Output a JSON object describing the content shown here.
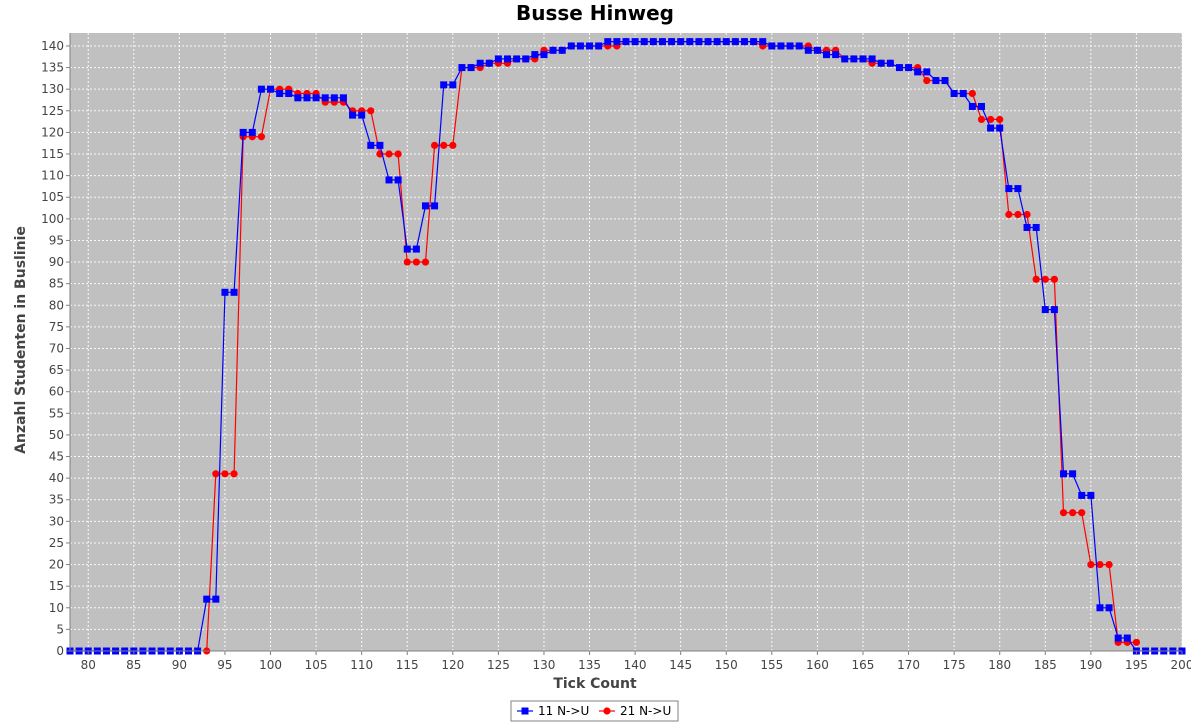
{
  "colors": {
    "plot_background": "#c0c0c0",
    "gridline": "#ffffff",
    "series_11": "#0000ff",
    "series_21": "#ff0000"
  },
  "chart_data": {
    "type": "line",
    "title": "Busse Hinweg",
    "xlabel": "Tick Count",
    "ylabel": "Anzahl Studenten in Buslinie",
    "xlim": [
      78,
      200
    ],
    "ylim": [
      0,
      143
    ],
    "x_ticks": [
      "80",
      "85",
      "90",
      "95",
      "100",
      "105",
      "110",
      "115",
      "120",
      "125",
      "130",
      "135",
      "140",
      "145",
      "150",
      "155",
      "160",
      "165",
      "170",
      "175",
      "180",
      "185",
      "190",
      "195",
      "200"
    ],
    "y_ticks": [
      "0",
      "5",
      "10",
      "15",
      "20",
      "25",
      "30",
      "35",
      "40",
      "45",
      "50",
      "55",
      "60",
      "65",
      "70",
      "75",
      "80",
      "85",
      "90",
      "95",
      "100",
      "105",
      "110",
      "115",
      "120",
      "125",
      "130",
      "135",
      "140"
    ],
    "grid": true,
    "legend_position": "bottom",
    "x": [
      78,
      79,
      80,
      81,
      82,
      83,
      84,
      85,
      86,
      87,
      88,
      89,
      90,
      91,
      92,
      93,
      94,
      95,
      96,
      97,
      98,
      99,
      100,
      101,
      102,
      103,
      104,
      105,
      106,
      107,
      108,
      109,
      110,
      111,
      112,
      113,
      114,
      115,
      116,
      117,
      118,
      119,
      120,
      121,
      122,
      123,
      124,
      125,
      126,
      127,
      128,
      129,
      130,
      131,
      132,
      133,
      134,
      135,
      136,
      137,
      138,
      139,
      140,
      141,
      142,
      143,
      144,
      145,
      146,
      147,
      148,
      149,
      150,
      151,
      152,
      153,
      154,
      155,
      156,
      157,
      158,
      159,
      160,
      161,
      162,
      163,
      164,
      165,
      166,
      167,
      168,
      169,
      170,
      171,
      172,
      173,
      174,
      175,
      176,
      177,
      178,
      179,
      180,
      181,
      182,
      183,
      184,
      185,
      186,
      187,
      188,
      189,
      190,
      191,
      192,
      193,
      194,
      195,
      196,
      197,
      198,
      199,
      200
    ],
    "series": [
      {
        "name": "11 N->U",
        "marker": "square",
        "values": [
          0,
          0,
          0,
          0,
          0,
          0,
          0,
          0,
          0,
          0,
          0,
          0,
          0,
          0,
          0,
          12,
          12,
          83,
          83,
          120,
          120,
          130,
          130,
          129,
          129,
          128,
          128,
          128,
          128,
          128,
          128,
          124,
          124,
          117,
          117,
          109,
          109,
          93,
          93,
          103,
          103,
          131,
          131,
          135,
          135,
          136,
          136,
          137,
          137,
          137,
          137,
          138,
          138,
          139,
          139,
          140,
          140,
          140,
          140,
          141,
          141,
          141,
          141,
          141,
          141,
          141,
          141,
          141,
          141,
          141,
          141,
          141,
          141,
          141,
          141,
          141,
          141,
          140,
          140,
          140,
          140,
          139,
          139,
          138,
          138,
          137,
          137,
          137,
          137,
          136,
          136,
          135,
          135,
          134,
          134,
          132,
          132,
          129,
          129,
          126,
          126,
          121,
          121,
          107,
          107,
          98,
          98,
          79,
          79,
          41,
          41,
          36,
          36,
          10,
          10,
          3,
          3,
          0,
          0,
          0,
          0,
          0,
          0
        ]
      },
      {
        "name": "21 N->U",
        "marker": "circle",
        "values": [
          null,
          null,
          null,
          null,
          null,
          null,
          null,
          null,
          null,
          null,
          null,
          null,
          null,
          null,
          null,
          0,
          41,
          41,
          41,
          119,
          119,
          119,
          130,
          130,
          130,
          129,
          129,
          129,
          127,
          127,
          127,
          125,
          125,
          125,
          115,
          115,
          115,
          90,
          90,
          90,
          117,
          117,
          117,
          135,
          135,
          135,
          136,
          136,
          136,
          137,
          137,
          137,
          139,
          139,
          139,
          140,
          140,
          140,
          140,
          140,
          140,
          141,
          141,
          141,
          141,
          141,
          141,
          141,
          141,
          141,
          141,
          141,
          141,
          141,
          141,
          141,
          140,
          140,
          140,
          140,
          140,
          140,
          139,
          139,
          139,
          137,
          137,
          137,
          136,
          136,
          136,
          135,
          135,
          135,
          132,
          132,
          132,
          129,
          129,
          129,
          123,
          123,
          123,
          101,
          101,
          101,
          86,
          86,
          86,
          32,
          32,
          32,
          20,
          20,
          20,
          2,
          2,
          2,
          null,
          null,
          null,
          null,
          null
        ]
      }
    ]
  }
}
